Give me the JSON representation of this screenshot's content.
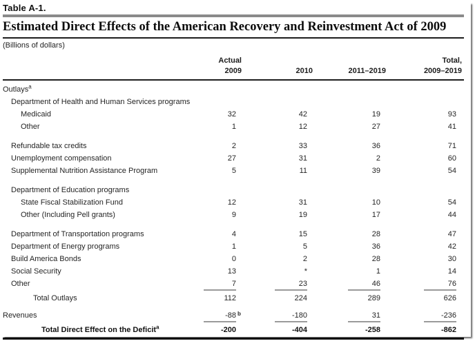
{
  "header": {
    "tag": "Table A-1.",
    "title": "Estimated Direct Effects of the American Recovery and Reinvestment Act of 2009",
    "subtitle": "(Billions of dollars)"
  },
  "columns": [
    {
      "line1": "Actual",
      "line2": "2009"
    },
    {
      "line1": "",
      "line2": "2010"
    },
    {
      "line1": "",
      "line2": "2011–2019"
    },
    {
      "line1": "Total,",
      "line2": "2009–2019"
    }
  ],
  "rows": [
    {
      "label": "Outlays",
      "sup": "a",
      "indent": 0
    },
    {
      "label": "Department of Health and Human Services programs",
      "indent": 1
    },
    {
      "label": "Medicaid",
      "indent": 2,
      "values": [
        "32",
        "42",
        "19",
        "93"
      ]
    },
    {
      "label": "Other",
      "indent": 2,
      "values": [
        "1",
        "12",
        "27",
        "41"
      ]
    },
    {
      "type": "spacer"
    },
    {
      "label": "Refundable tax credits",
      "indent": 1,
      "values": [
        "2",
        "33",
        "36",
        "71"
      ]
    },
    {
      "label": "Unemployment compensation",
      "indent": 1,
      "values": [
        "27",
        "31",
        "2",
        "60"
      ]
    },
    {
      "label": "Supplemental Nutrition Assistance Program",
      "indent": 1,
      "values": [
        "5",
        "11",
        "39",
        "54"
      ]
    },
    {
      "type": "spacer"
    },
    {
      "label": "Department of Education programs",
      "indent": 1
    },
    {
      "label": "State Fiscal Stabilization Fund",
      "indent": 2,
      "values": [
        "12",
        "31",
        "10",
        "54"
      ]
    },
    {
      "label": "Other (Including Pell grants)",
      "indent": 2,
      "values": [
        "9",
        "19",
        "17",
        "44"
      ]
    },
    {
      "type": "spacer"
    },
    {
      "label": "Department of Transportation programs",
      "indent": 1,
      "values": [
        "4",
        "15",
        "28",
        "47"
      ]
    },
    {
      "label": "Department of Energy programs",
      "indent": 1,
      "values": [
        "1",
        "5",
        "36",
        "42"
      ]
    },
    {
      "label": "Build America Bonds",
      "indent": 1,
      "values": [
        "0",
        "2",
        "28",
        "30"
      ]
    },
    {
      "label": "Social Security",
      "indent": 1,
      "values": [
        "13",
        "*",
        "1",
        "14"
      ]
    },
    {
      "label": "Other",
      "indent": 1,
      "values": [
        "7",
        "23",
        "46",
        "76"
      ],
      "rule": true
    },
    {
      "label": "Total Outlays",
      "indent": 3,
      "values": [
        "112",
        "224",
        "289",
        "626"
      ]
    },
    {
      "type": "spacer",
      "small": true
    },
    {
      "label": "Revenues",
      "indent": 0,
      "values": [
        {
          "v": "-88",
          "sup": "b"
        },
        "-180",
        "31",
        "-236"
      ],
      "rule": true
    },
    {
      "label": "Total Direct Effect on the Deficit",
      "sup": "a",
      "indent": 4,
      "values": [
        "-200",
        "-404",
        "-258",
        "-862"
      ],
      "bold": true
    }
  ],
  "colors": {
    "text": "#242424",
    "title_rule": "#1c1c1c",
    "gray_rule": "#8a8a8a",
    "sum_underline": "#9a9a9a",
    "bottom_rule": "#101010"
  }
}
